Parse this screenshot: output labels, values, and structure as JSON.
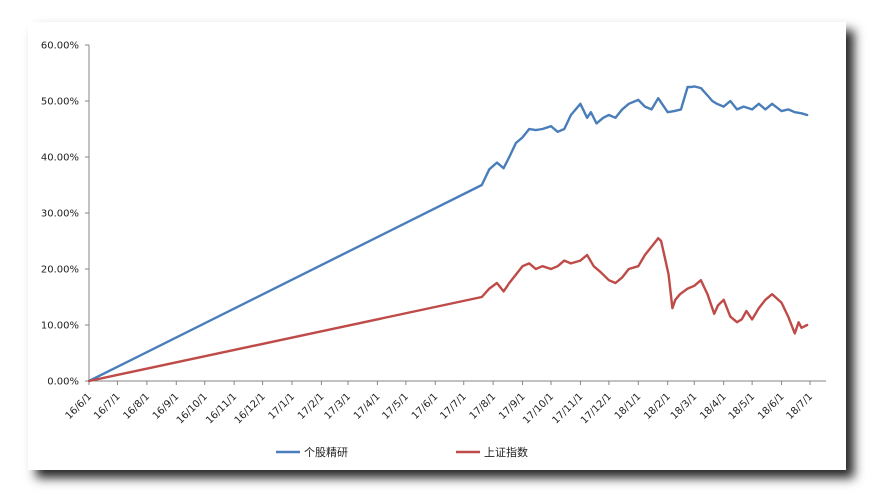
{
  "chart_data": {
    "type": "line",
    "title": "",
    "xlabel": "",
    "ylabel": "",
    "ylim": [
      0,
      60
    ],
    "y_ticks": [
      "0.00%",
      "10.00%",
      "20.00%",
      "30.00%",
      "40.00%",
      "50.00%",
      "60.00%"
    ],
    "x_ticks": [
      "16/6/1",
      "16/7/1",
      "16/8/1",
      "16/9/1",
      "16/10/1",
      "16/11/1",
      "16/12/1",
      "17/1/1",
      "17/2/1",
      "17/3/1",
      "17/4/1",
      "17/5/1",
      "17/6/1",
      "17/7/1",
      "17/8/1",
      "17/9/1",
      "17/10/1",
      "17/11/1",
      "17/12/1",
      "18/1/1",
      "18/2/1",
      "18/3/1",
      "18/4/1",
      "18/5/1",
      "18/6/1",
      "18/7/1"
    ],
    "grid": false,
    "legend_position": "bottom",
    "series": [
      {
        "name": "个股精研",
        "color": "#4a7ebb",
        "x": [
          "16/6/1",
          "17/7/20",
          "17/7/28",
          "17/8/5",
          "17/8/12",
          "17/8/18",
          "17/8/25",
          "17/9/1",
          "17/9/8",
          "17/9/15",
          "17/9/22",
          "17/10/1",
          "17/10/8",
          "17/10/15",
          "17/10/22",
          "17/11/1",
          "17/11/8",
          "17/11/12",
          "17/11/18",
          "17/11/25",
          "17/12/1",
          "17/12/8",
          "17/12/15",
          "17/12/22",
          "18/1/1",
          "18/1/8",
          "18/1/15",
          "18/1/22",
          "18/2/1",
          "18/2/8",
          "18/2/15",
          "18/2/22",
          "18/2/26",
          "18/3/1",
          "18/3/8",
          "18/3/15",
          "18/3/20",
          "18/3/25",
          "18/4/1",
          "18/4/8",
          "18/4/15",
          "18/4/22",
          "18/5/1",
          "18/5/8",
          "18/5/15",
          "18/5/22",
          "18/6/1",
          "18/6/8",
          "18/6/15",
          "18/6/22",
          "18/6/28"
        ],
        "values": [
          0,
          35.0,
          37.8,
          39.0,
          38.0,
          40.0,
          42.5,
          43.5,
          45.0,
          44.8,
          45.0,
          45.5,
          44.5,
          45.0,
          47.5,
          49.5,
          47.0,
          48.0,
          46.0,
          47.0,
          47.5,
          47.0,
          48.5,
          49.5,
          50.2,
          49.0,
          48.5,
          50.5,
          48.0,
          48.2,
          48.5,
          52.5,
          52.5,
          52.6,
          52.3,
          51.0,
          50.0,
          49.5,
          49.0,
          50.0,
          48.5,
          49.0,
          48.5,
          49.5,
          48.5,
          49.5,
          48.2,
          48.5,
          48.0,
          47.8,
          47.5
        ]
      },
      {
        "name": "上证指数",
        "color": "#be4b48",
        "x": [
          "16/6/1",
          "17/7/20",
          "17/7/28",
          "17/8/5",
          "17/8/12",
          "17/8/18",
          "17/8/25",
          "17/9/1",
          "17/9/8",
          "17/9/15",
          "17/9/22",
          "17/10/1",
          "17/10/8",
          "17/10/15",
          "17/10/22",
          "17/11/1",
          "17/11/8",
          "17/11/15",
          "17/11/22",
          "17/12/1",
          "17/12/8",
          "17/12/15",
          "17/12/22",
          "18/1/1",
          "18/1/8",
          "18/1/15",
          "18/1/22",
          "18/1/25",
          "18/1/29",
          "18/2/2",
          "18/2/6",
          "18/2/9",
          "18/2/14",
          "18/2/22",
          "18/3/1",
          "18/3/8",
          "18/3/15",
          "18/3/22",
          "18/3/26",
          "18/4/1",
          "18/4/8",
          "18/4/15",
          "18/4/20",
          "18/4/25",
          "18/5/1",
          "18/5/8",
          "18/5/15",
          "18/5/22",
          "18/6/1",
          "18/6/8",
          "18/6/15",
          "18/6/19",
          "18/6/22",
          "18/6/28"
        ],
        "values": [
          0,
          15.0,
          16.5,
          17.5,
          16.0,
          17.5,
          19.0,
          20.5,
          21.0,
          20.0,
          20.5,
          20.0,
          20.5,
          21.5,
          21.0,
          21.5,
          22.5,
          20.5,
          19.5,
          18.0,
          17.5,
          18.5,
          20.0,
          20.5,
          22.5,
          24.0,
          25.5,
          25.0,
          22.0,
          19.0,
          13.0,
          14.5,
          15.5,
          16.5,
          17.0,
          18.0,
          15.5,
          12.0,
          13.5,
          14.5,
          11.5,
          10.5,
          11.0,
          12.5,
          11.0,
          13.0,
          14.5,
          15.5,
          14.0,
          11.5,
          8.5,
          10.5,
          9.5,
          10.0
        ]
      }
    ]
  }
}
